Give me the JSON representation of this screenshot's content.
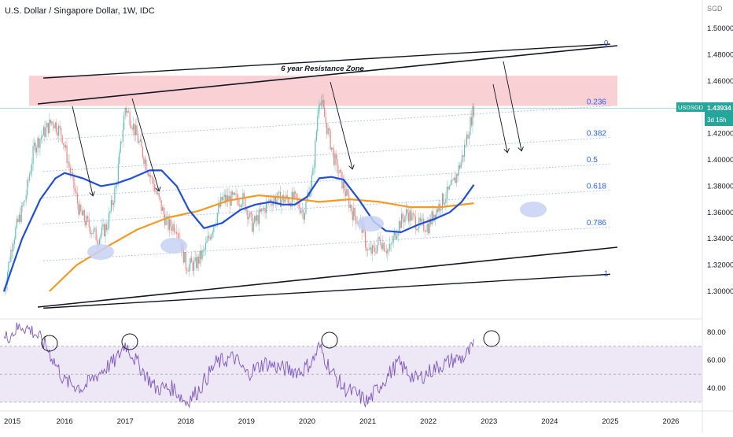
{
  "header": {
    "title": "U.S. Dollar / Singapore Dollar, 1W, IDC"
  },
  "price_axis": {
    "unit": "SGD"
  },
  "price_tag": {
    "symbol": "USDSGD",
    "value": "1.43934",
    "countdown": "3d 16h"
  },
  "colors": {
    "up": "#26a69a",
    "down": "#ef5350",
    "ma_blue": "#1e4fd8",
    "ma_orange": "#f39a25",
    "rsi_line": "#7e57c2",
    "rsi_band": "#ede7f6",
    "resistance_zone": "#f8c8cc",
    "fib_line": "#2962ff",
    "channel": "#131722",
    "ellipse": "#c7d2f5",
    "price_line": "#26a69a"
  },
  "chart_data": [
    {
      "type": "candlestick",
      "title": "U.S. Dollar / Singapore Dollar, 1W, IDC",
      "ylim": [
        1.285,
        1.515
      ],
      "xlim": [
        2015.0,
        2026.35
      ],
      "y_ticks": [
        "1.30000",
        "1.32000",
        "1.34000",
        "1.36000",
        "1.38000",
        "1.40000",
        "1.42000",
        "1.44000",
        "1.46000",
        "1.48000",
        "1.50000"
      ],
      "x_ticks": [
        "2015",
        "2016",
        "2017",
        "2018",
        "2019",
        "2020",
        "2021",
        "2022",
        "2023",
        "2024",
        "2025",
        "2026"
      ],
      "price_path": [
        [
          2015.0,
          1.3
        ],
        [
          2015.15,
          1.34
        ],
        [
          2015.35,
          1.37
        ],
        [
          2015.5,
          1.41
        ],
        [
          2015.65,
          1.42
        ],
        [
          2015.8,
          1.43
        ],
        [
          2015.95,
          1.42
        ],
        [
          2016.1,
          1.39
        ],
        [
          2016.25,
          1.36
        ],
        [
          2016.4,
          1.35
        ],
        [
          2016.55,
          1.34
        ],
        [
          2016.7,
          1.35
        ],
        [
          2016.85,
          1.38
        ],
        [
          2017.0,
          1.44
        ],
        [
          2017.1,
          1.43
        ],
        [
          2017.25,
          1.41
        ],
        [
          2017.4,
          1.39
        ],
        [
          2017.55,
          1.37
        ],
        [
          2017.7,
          1.35
        ],
        [
          2017.85,
          1.35
        ],
        [
          2018.0,
          1.32
        ],
        [
          2018.15,
          1.32
        ],
        [
          2018.3,
          1.33
        ],
        [
          2018.45,
          1.35
        ],
        [
          2018.6,
          1.37
        ],
        [
          2018.8,
          1.37
        ],
        [
          2018.95,
          1.37
        ],
        [
          2019.1,
          1.35
        ],
        [
          2019.25,
          1.36
        ],
        [
          2019.4,
          1.37
        ],
        [
          2019.6,
          1.37
        ],
        [
          2019.8,
          1.37
        ],
        [
          2019.95,
          1.36
        ],
        [
          2020.1,
          1.39
        ],
        [
          2020.2,
          1.45
        ],
        [
          2020.3,
          1.43
        ],
        [
          2020.45,
          1.4
        ],
        [
          2020.6,
          1.38
        ],
        [
          2020.75,
          1.36
        ],
        [
          2020.9,
          1.35
        ],
        [
          2021.0,
          1.33
        ],
        [
          2021.1,
          1.33
        ],
        [
          2021.2,
          1.34
        ],
        [
          2021.35,
          1.33
        ],
        [
          2021.5,
          1.35
        ],
        [
          2021.65,
          1.36
        ],
        [
          2021.85,
          1.35
        ],
        [
          2022.0,
          1.35
        ],
        [
          2022.1,
          1.36
        ],
        [
          2022.25,
          1.37
        ],
        [
          2022.4,
          1.38
        ],
        [
          2022.55,
          1.4
        ],
        [
          2022.65,
          1.42
        ],
        [
          2022.75,
          1.43934
        ]
      ],
      "ma_blue": [
        [
          2015.0,
          1.3
        ],
        [
          2015.3,
          1.34
        ],
        [
          2015.6,
          1.37
        ],
        [
          2015.85,
          1.386
        ],
        [
          2016.0,
          1.39
        ],
        [
          2016.3,
          1.386
        ],
        [
          2016.6,
          1.38
        ],
        [
          2016.85,
          1.382
        ],
        [
          2017.1,
          1.386
        ],
        [
          2017.4,
          1.392
        ],
        [
          2017.6,
          1.392
        ],
        [
          2017.85,
          1.38
        ],
        [
          2018.05,
          1.362
        ],
        [
          2018.3,
          1.348
        ],
        [
          2018.6,
          1.352
        ],
        [
          2018.9,
          1.362
        ],
        [
          2019.15,
          1.366
        ],
        [
          2019.4,
          1.368
        ],
        [
          2019.6,
          1.366
        ],
        [
          2019.8,
          1.366
        ],
        [
          2020.0,
          1.372
        ],
        [
          2020.2,
          1.386
        ],
        [
          2020.4,
          1.387
        ],
        [
          2020.6,
          1.385
        ],
        [
          2020.85,
          1.37
        ],
        [
          2021.1,
          1.353
        ],
        [
          2021.3,
          1.346
        ],
        [
          2021.55,
          1.345
        ],
        [
          2021.85,
          1.351
        ],
        [
          2022.1,
          1.355
        ],
        [
          2022.35,
          1.36
        ],
        [
          2022.55,
          1.368
        ],
        [
          2022.75,
          1.381
        ]
      ],
      "ma_orange": [
        [
          2015.75,
          1.3
        ],
        [
          2016.2,
          1.32
        ],
        [
          2016.7,
          1.334
        ],
        [
          2017.2,
          1.347
        ],
        [
          2017.7,
          1.356
        ],
        [
          2018.2,
          1.361
        ],
        [
          2018.7,
          1.369
        ],
        [
          2019.2,
          1.373
        ],
        [
          2019.7,
          1.371
        ],
        [
          2020.2,
          1.368
        ],
        [
          2020.7,
          1.37
        ],
        [
          2021.2,
          1.368
        ],
        [
          2021.7,
          1.364
        ],
        [
          2022.2,
          1.364
        ],
        [
          2022.75,
          1.367
        ]
      ],
      "fib_levels": [
        {
          "label": "0",
          "value": 1.488
        },
        {
          "label": "0.236",
          "value": 1.441
        },
        {
          "label": "0.382",
          "value": 1.417
        },
        {
          "label": "0.5",
          "value": 1.397
        },
        {
          "label": "0.618",
          "value": 1.377
        },
        {
          "label": "0.786",
          "value": 1.349
        },
        {
          "label": "1",
          "value": 1.313
        }
      ],
      "annotations": [
        {
          "text": "6 year Resistance Zone"
        }
      ],
      "resistance_zone": [
        1.441,
        1.464
      ]
    },
    {
      "type": "line",
      "ylim": [
        20,
        95
      ],
      "y_ticks": [
        "80.00",
        "60.00",
        "40.00"
      ],
      "bands": [
        70,
        50,
        30
      ],
      "series": [
        {
          "values": [
            [
              2015.0,
              75
            ],
            [
              2015.3,
              85
            ],
            [
              2015.5,
              80
            ],
            [
              2015.7,
              70
            ],
            [
              2016.0,
              45
            ],
            [
              2016.3,
              40
            ],
            [
              2016.6,
              52
            ],
            [
              2016.85,
              60
            ],
            [
              2017.0,
              72
            ],
            [
              2017.2,
              58
            ],
            [
              2017.5,
              40
            ],
            [
              2017.8,
              40
            ],
            [
              2018.0,
              30
            ],
            [
              2018.2,
              38
            ],
            [
              2018.5,
              58
            ],
            [
              2018.8,
              62
            ],
            [
              2019.0,
              50
            ],
            [
              2019.3,
              58
            ],
            [
              2019.6,
              54
            ],
            [
              2019.9,
              52
            ],
            [
              2020.1,
              60
            ],
            [
              2020.2,
              70
            ],
            [
              2020.4,
              52
            ],
            [
              2020.6,
              40
            ],
            [
              2020.8,
              36
            ],
            [
              2021.0,
              30
            ],
            [
              2021.2,
              42
            ],
            [
              2021.5,
              58
            ],
            [
              2021.8,
              46
            ],
            [
              2022.1,
              54
            ],
            [
              2022.4,
              60
            ],
            [
              2022.6,
              62
            ],
            [
              2022.75,
              70
            ]
          ]
        }
      ]
    }
  ]
}
